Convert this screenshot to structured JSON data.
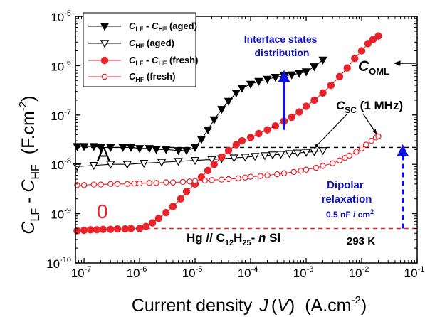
{
  "chart_data": {
    "type": "scatter",
    "x_scale": "log",
    "y_scale": "log",
    "xlim": [
      7e-08,
      0.1
    ],
    "ylim": [
      1e-10,
      1e-05
    ],
    "x_ticks": [
      {
        "v": 1e-07,
        "m": "10",
        "e": "-7"
      },
      {
        "v": 1e-06,
        "m": "10",
        "e": "-6"
      },
      {
        "v": 1e-05,
        "m": "10",
        "e": "-5"
      },
      {
        "v": 0.0001,
        "m": "10",
        "e": "-4"
      },
      {
        "v": 0.001,
        "m": "10",
        "e": "-3"
      },
      {
        "v": 0.01,
        "m": "10",
        "e": "-2"
      },
      {
        "v": 0.1,
        "m": "10",
        "e": "-1"
      }
    ],
    "y_ticks": [
      {
        "v": 1e-10,
        "m": "10",
        "e": "-10"
      },
      {
        "v": 1e-09,
        "m": "10",
        "e": "-9"
      },
      {
        "v": 1e-08,
        "m": "10",
        "e": "-8"
      },
      {
        "v": 1e-07,
        "m": "10",
        "e": "-7"
      },
      {
        "v": 1e-06,
        "m": "10",
        "e": "-6"
      },
      {
        "v": 1e-05,
        "m": "10",
        "e": "-5"
      }
    ],
    "xlabel": {
      "main": "Current density",
      "var": "J",
      "arg": "V",
      "unit_pre": "(A.cm",
      "unit_exp": "-2",
      "unit_post": ")"
    },
    "ylabel": {
      "c1": "C",
      "s1": "LF",
      "mid": " - ",
      "c2": "C",
      "s2": "HF",
      "unit_pre": "(F.cm",
      "unit_exp": "-2",
      "unit_post": ")"
    },
    "legend": {
      "position": "top-left",
      "entries": [
        {
          "c1": "C",
          "s1": "LF",
          "mid": " - ",
          "c2": "C",
          "s2": "HF",
          "tail": " (aged)"
        },
        {
          "c1": "C",
          "s1": "HF",
          "mid": "",
          "c2": "",
          "s2": "",
          "tail": " (aged)"
        },
        {
          "c1": "C",
          "s1": "LF",
          "mid": " - ",
          "c2": "C",
          "s2": "HF",
          "tail": " (fresh)"
        },
        {
          "c1": "C",
          "s1": "HF",
          "mid": "",
          "c2": "",
          "s2": "",
          "tail": " (fresh)"
        }
      ]
    },
    "series": [
      {
        "color": "#000000",
        "marker": "triangle-down",
        "filled": true,
        "x": [
          7.5e-08,
          1e-07,
          1.5e-07,
          2e-07,
          3e-07,
          5e-07,
          7e-07,
          1e-06,
          1.5e-06,
          2e-06,
          3e-06,
          5e-06,
          7e-06,
          1e-05,
          1.3e-05,
          1.7e-05,
          2.2e-05,
          3e-05,
          4e-05,
          5.5e-05,
          7e-05,
          0.0001,
          0.00014,
          0.0002,
          0.00028,
          0.0004,
          0.00055,
          0.00075,
          0.001,
          0.0014,
          0.002
        ],
        "y": [
          2.3e-08,
          2.3e-08,
          2.3e-08,
          2.2e-08,
          2.2e-08,
          2.2e-08,
          2.2e-08,
          2.1e-08,
          2.1e-08,
          2e-08,
          2e-08,
          1.9e-08,
          1.9e-08,
          2.2e-08,
          3.2e-08,
          5e-08,
          8e-08,
          1.3e-07,
          1.9e-07,
          2.8e-07,
          3.5e-07,
          4.2e-07,
          4.8e-07,
          5.3e-07,
          5.8e-07,
          6.2e-07,
          6.5e-07,
          7e-07,
          7.5e-07,
          9.5e-07,
          1.3e-06
        ]
      },
      {
        "color": "#000000",
        "marker": "triangle-down",
        "filled": false,
        "x": [
          7.5e-08,
          1.5e-07,
          3e-07,
          6e-07,
          1.2e-06,
          2.5e-06,
          5e-06,
          1e-05,
          2e-05,
          3e-05,
          5e-05,
          8e-05,
          0.00012,
          0.00018,
          0.00025,
          0.00035,
          0.0005,
          0.0007,
          0.001,
          0.0014,
          0.002
        ],
        "y": [
          9e-09,
          9.5e-09,
          1e-08,
          1e-08,
          1.05e-08,
          1.1e-08,
          1.15e-08,
          1.2e-08,
          1.25e-08,
          1.3e-08,
          1.35e-08,
          1.4e-08,
          1.45e-08,
          1.5e-08,
          1.55e-08,
          1.6e-08,
          1.65e-08,
          1.7e-08,
          1.75e-08,
          1.8e-08,
          1.9e-08
        ]
      },
      {
        "color": "#e8232a",
        "marker": "circle",
        "filled": true,
        "x": [
          7.5e-08,
          1e-07,
          1.3e-07,
          1.7e-07,
          2.2e-07,
          3e-07,
          4e-07,
          5.5e-07,
          7e-07,
          1e-06,
          1.3e-06,
          1.7e-06,
          2.2e-06,
          3e-06,
          4e-06,
          5.5e-06,
          7e-06,
          1e-05,
          1.3e-05,
          1.7e-05,
          2.2e-05,
          3e-05,
          4e-05,
          5.5e-05,
          7e-05,
          0.0001,
          0.00014,
          0.0002,
          0.00028,
          0.0004,
          0.00055,
          0.00075,
          0.001,
          0.0014,
          0.002,
          0.0028,
          0.004,
          0.0055,
          0.0075,
          0.01,
          0.013,
          0.016,
          0.02
        ],
        "y": [
          4.5e-10,
          4.6e-10,
          4.7e-10,
          4.7e-10,
          4.8e-10,
          4.8e-10,
          4.9e-10,
          4.9e-10,
          5e-10,
          5e-10,
          5.5e-10,
          6.5e-10,
          8e-10,
          1.05e-09,
          1.4e-09,
          2e-09,
          2.8e-09,
          4e-09,
          5.5e-09,
          7.5e-09,
          1e-08,
          1.4e-08,
          1.9e-08,
          2.5e-08,
          3e-08,
          3.5e-08,
          4.2e-08,
          5e-08,
          6e-08,
          7.5e-08,
          9e-08,
          1.15e-07,
          1.5e-07,
          2e-07,
          2.8e-07,
          4e-07,
          6e-07,
          9e-07,
          1.4e-06,
          2e-06,
          2.8e-06,
          3.4e-06,
          4e-06
        ]
      },
      {
        "color": "#e8232a",
        "marker": "circle",
        "filled": false,
        "x": [
          7.5e-08,
          1e-07,
          1.5e-07,
          2e-07,
          3e-07,
          4e-07,
          6e-07,
          8e-07,
          1e-06,
          1.5e-06,
          2e-06,
          3e-06,
          4e-06,
          6e-06,
          8e-06,
          1e-05,
          1.5e-05,
          2e-05,
          3e-05,
          4e-05,
          6e-05,
          8e-05,
          0.0001,
          0.00015,
          0.0002,
          0.0003,
          0.0004,
          0.0006,
          0.0008,
          0.001,
          0.0015,
          0.002,
          0.003,
          0.004,
          0.005,
          0.006,
          0.008,
          0.01,
          0.012,
          0.015,
          0.018,
          0.02
        ],
        "y": [
          3.8e-09,
          3.8e-09,
          3.9e-09,
          3.9e-09,
          4e-09,
          4e-09,
          4e-09,
          4.1e-09,
          4.1e-09,
          4.2e-09,
          4.2e-09,
          4.3e-09,
          4.3e-09,
          4.4e-09,
          4.5e-09,
          4.6e-09,
          4.7e-09,
          4.8e-09,
          4.9e-09,
          5e-09,
          5.2e-09,
          5.4e-09,
          5.6e-09,
          5.8e-09,
          6e-09,
          6.3e-09,
          6.6e-09,
          7e-09,
          7.4e-09,
          7.8e-09,
          8.5e-09,
          9.3e-09,
          1.05e-08,
          1.2e-08,
          1.35e-08,
          1.5e-08,
          1.8e-08,
          2.1e-08,
          2.5e-08,
          3e-08,
          3.5e-08,
          3.7e-08
        ]
      }
    ],
    "reference_lines": [
      {
        "y": 2.2e-08,
        "color": "#000000",
        "style": "dashed"
      },
      {
        "y": 5e-10,
        "color": "#e8232a",
        "style": "dashed"
      }
    ],
    "arrows": [
      {
        "x": 0.0004,
        "y_from": 5e-08,
        "y_to": 7e-07,
        "color": "#1010e0",
        "style": "solid"
      },
      {
        "x": 0.055,
        "y_from": 5e-10,
        "y_to": 2.2e-08,
        "color": "#1010e0",
        "style": "dashed"
      }
    ],
    "annotations": {
      "A": "A",
      "zero": "0",
      "interface": [
        "Interface states",
        "distribution"
      ],
      "c_oml": {
        "c": "C",
        "sub": "OML"
      },
      "c_sc": {
        "c": "C",
        "sub": "SC",
        "tail": " (1 MHz)"
      },
      "dipolar": [
        "Dipolar",
        "relaxation"
      ],
      "dipolar_value": {
        "pre": "0.5 nF / cm",
        "exp": "2"
      },
      "sample": {
        "pre": "Hg // C",
        "s1": "12",
        "mid": "H",
        "s2": "25",
        "tail1": "- ",
        "italic": "n",
        "tail2": " Si"
      },
      "temperature": "293 K"
    }
  }
}
